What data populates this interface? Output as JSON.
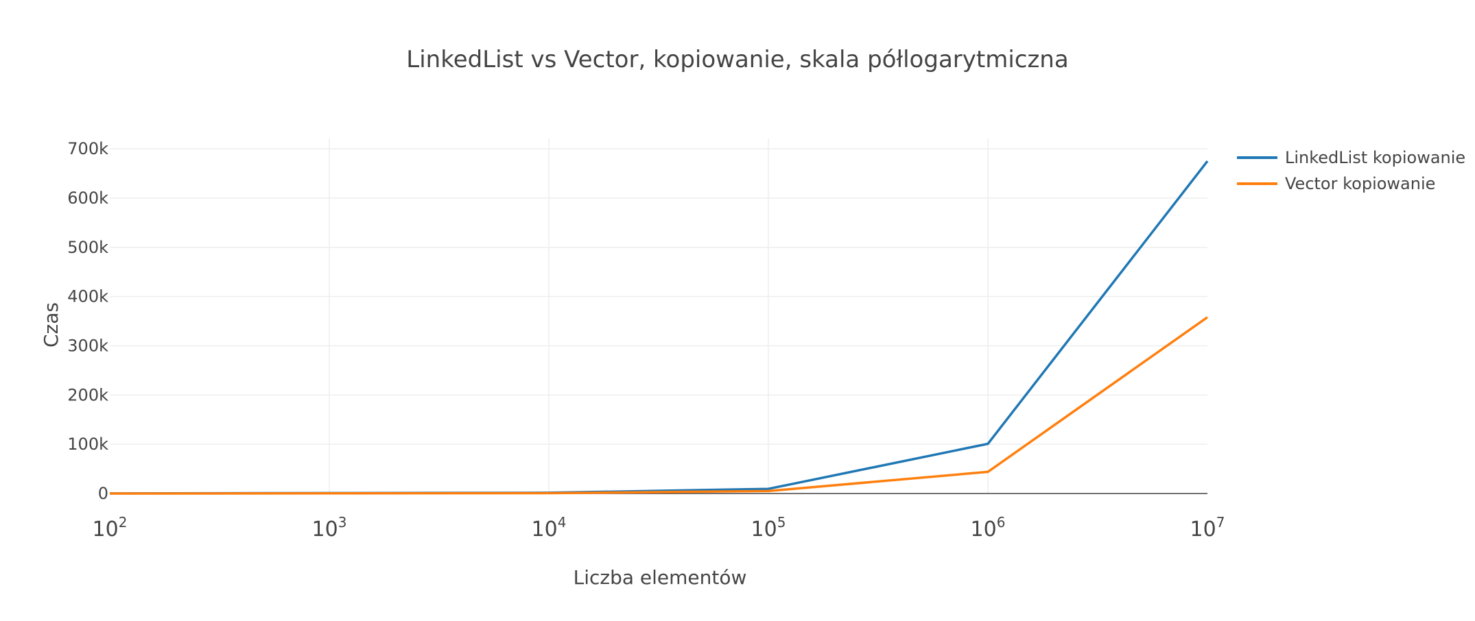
{
  "chart_data": {
    "type": "line",
    "title": "LinkedList vs Vector, kopiowanie, skala półlogarytmiczna",
    "xlabel": "Liczba elementów",
    "ylabel": "Czas",
    "x_scale": "log",
    "xlim": [
      100,
      10000000
    ],
    "ylim": [
      0,
      710000
    ],
    "x": [
      100,
      1000,
      10000,
      100000,
      1000000,
      10000000
    ],
    "x_ticks": [
      {
        "base": "10",
        "exp": "2"
      },
      {
        "base": "10",
        "exp": "3"
      },
      {
        "base": "10",
        "exp": "4"
      },
      {
        "base": "10",
        "exp": "5"
      },
      {
        "base": "10",
        "exp": "6"
      },
      {
        "base": "10",
        "exp": "7"
      }
    ],
    "y_ticks": [
      {
        "value": 0,
        "label": "0"
      },
      {
        "value": 100000,
        "label": "100k"
      },
      {
        "value": 200000,
        "label": "200k"
      },
      {
        "value": 300000,
        "label": "300k"
      },
      {
        "value": 400000,
        "label": "400k"
      },
      {
        "value": 500000,
        "label": "500k"
      },
      {
        "value": 600000,
        "label": "600k"
      },
      {
        "value": 700000,
        "label": "700k"
      }
    ],
    "grid": true,
    "legend_position": "top-right",
    "series": [
      {
        "name": "LinkedList kopiowanie",
        "color": "#1f77b4",
        "values": [
          100,
          800,
          1500,
          9500,
          101000,
          675000
        ]
      },
      {
        "name": "Vector kopiowanie",
        "color": "#ff7f0e",
        "values": [
          50,
          300,
          700,
          5000,
          44000,
          358000
        ]
      }
    ]
  }
}
